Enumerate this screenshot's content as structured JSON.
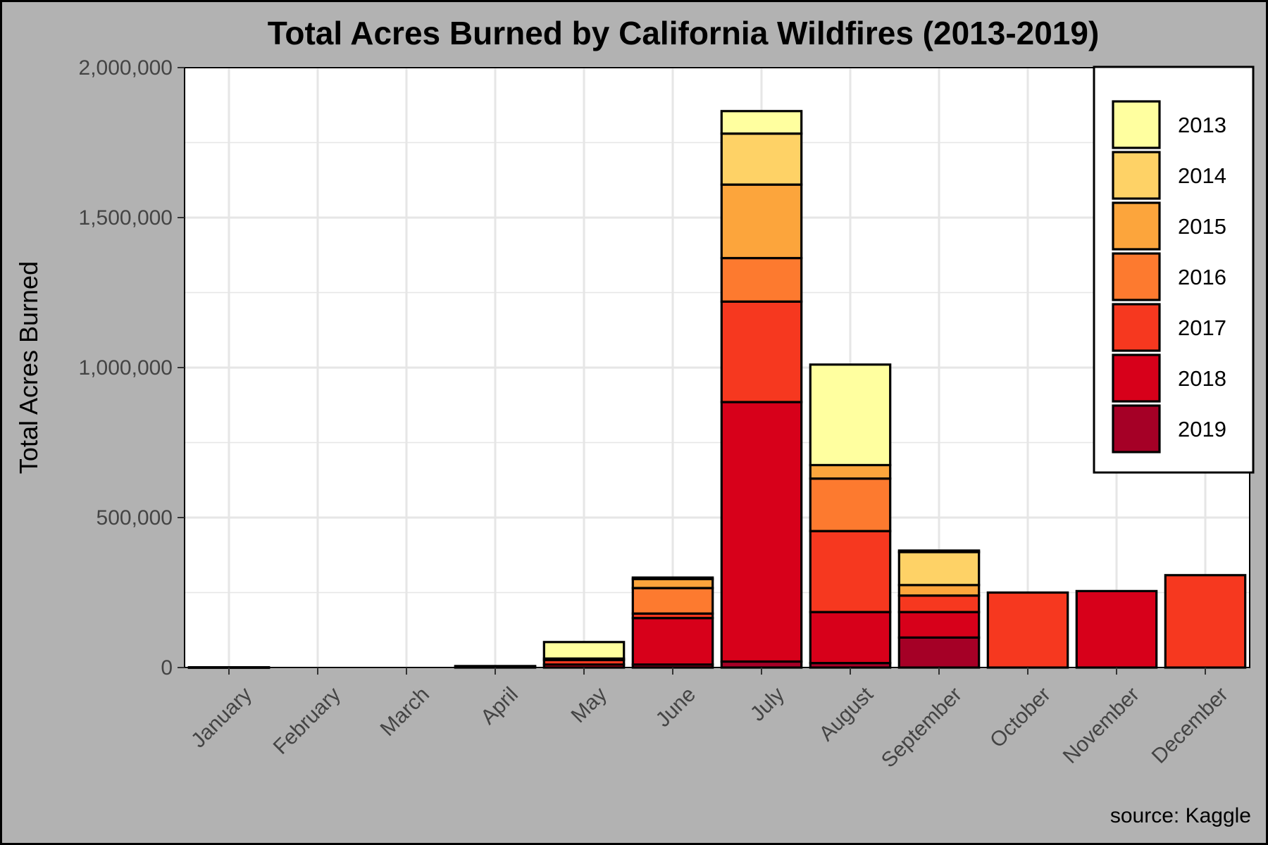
{
  "chart_data": {
    "type": "bar",
    "stacked": true,
    "title": "Total Acres Burned by California Wildfires (2013-2019)",
    "xlabel": "",
    "ylabel": "Total Acres Burned",
    "caption": "source: Kaggle",
    "ylim": [
      0,
      2000000
    ],
    "yticks": [
      0,
      500000,
      1000000,
      1500000,
      2000000
    ],
    "ytick_labels": [
      "0",
      "500,000",
      "1,000,000",
      "1,500,000",
      "2,000,000"
    ],
    "grid": true,
    "legend_position": "top-right",
    "categories": [
      "January",
      "February",
      "March",
      "April",
      "May",
      "June",
      "July",
      "August",
      "September",
      "October",
      "November",
      "December"
    ],
    "series": [
      {
        "name": "2019",
        "color": "#a50026",
        "values": [
          0,
          0,
          0,
          0,
          0,
          10000,
          20000,
          15000,
          100000,
          0,
          0,
          0
        ]
      },
      {
        "name": "2018",
        "color": "#d7001a",
        "values": [
          500,
          0,
          0,
          2000,
          10000,
          155000,
          865000,
          170000,
          85000,
          0,
          255000,
          0
        ]
      },
      {
        "name": "2017",
        "color": "#f6381f",
        "values": [
          500,
          0,
          0,
          3000,
          15000,
          15000,
          335000,
          270000,
          55000,
          250000,
          0,
          308000
        ]
      },
      {
        "name": "2016",
        "color": "#fd7a2f",
        "values": [
          0,
          0,
          0,
          0,
          5000,
          85000,
          145000,
          175000,
          0,
          0,
          0,
          0
        ]
      },
      {
        "name": "2015",
        "color": "#fca53c",
        "values": [
          0,
          0,
          0,
          0,
          0,
          30000,
          245000,
          45000,
          35000,
          0,
          0,
          0
        ]
      },
      {
        "name": "2014",
        "color": "#fed266",
        "values": [
          0,
          0,
          0,
          0,
          0,
          0,
          170000,
          0,
          110000,
          0,
          0,
          0
        ]
      },
      {
        "name": "2013",
        "color": "#ffff9f",
        "values": [
          0,
          0,
          0,
          0,
          55000,
          5000,
          75000,
          335000,
          5000,
          0,
          0,
          0
        ]
      }
    ],
    "legend_order": [
      "2013",
      "2014",
      "2015",
      "2016",
      "2017",
      "2018",
      "2019"
    ]
  },
  "colors": {
    "background": "#b2b2b2",
    "panel": "#ffffff",
    "gridline": "#e6e6e6",
    "bar_outline": "#000000"
  }
}
